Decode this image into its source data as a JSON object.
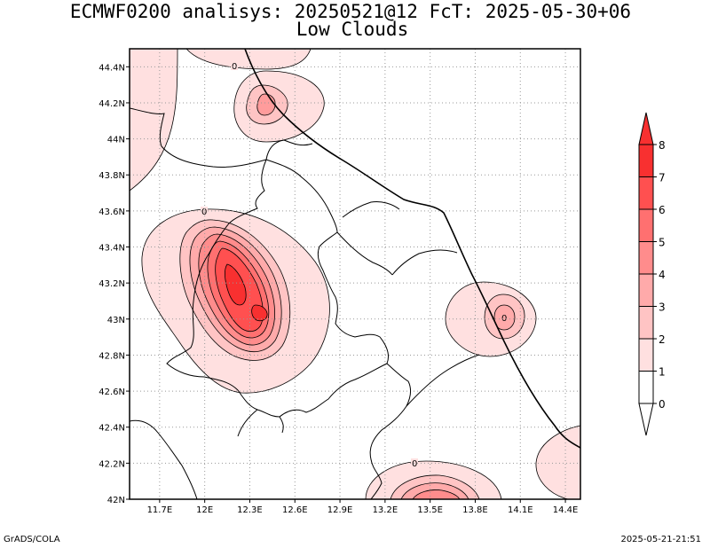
{
  "header": {
    "title_line1": "ECMWF0200 analisys: 20250521@12 FcT: 2025-05-30+06",
    "title_line2": "Low Clouds"
  },
  "footer": {
    "credit": "GrADS/COLA",
    "timestamp": "2025-05-21-21:51"
  },
  "map": {
    "lon_range": [
      11.5,
      14.5
    ],
    "lat_range": [
      42.0,
      44.5
    ],
    "lon_ticks": [
      "11.7E",
      "12E",
      "12.3E",
      "12.6E",
      "12.9E",
      "13.2E",
      "13.5E",
      "13.8E",
      "14.1E",
      "14.4E"
    ],
    "lat_ticks": [
      "42N",
      "42.2N",
      "42.4N",
      "42.6N",
      "42.8N",
      "43N",
      "43.2N",
      "43.4N",
      "43.6N",
      "43.8N",
      "44N",
      "44.2N",
      "44.4N"
    ],
    "grid": "dotted",
    "contour_labels": [
      "0",
      "0",
      "0",
      "0"
    ]
  },
  "colorbar": {
    "labels": [
      "0",
      "1",
      "2",
      "3",
      "4",
      "5",
      "6",
      "7",
      "8"
    ],
    "colors": [
      "#ffffff",
      "#ffe0e0",
      "#ffc4c4",
      "#ffaaaa",
      "#ff8c8c",
      "#ff7070",
      "#ff5050",
      "#f83030"
    ]
  }
}
